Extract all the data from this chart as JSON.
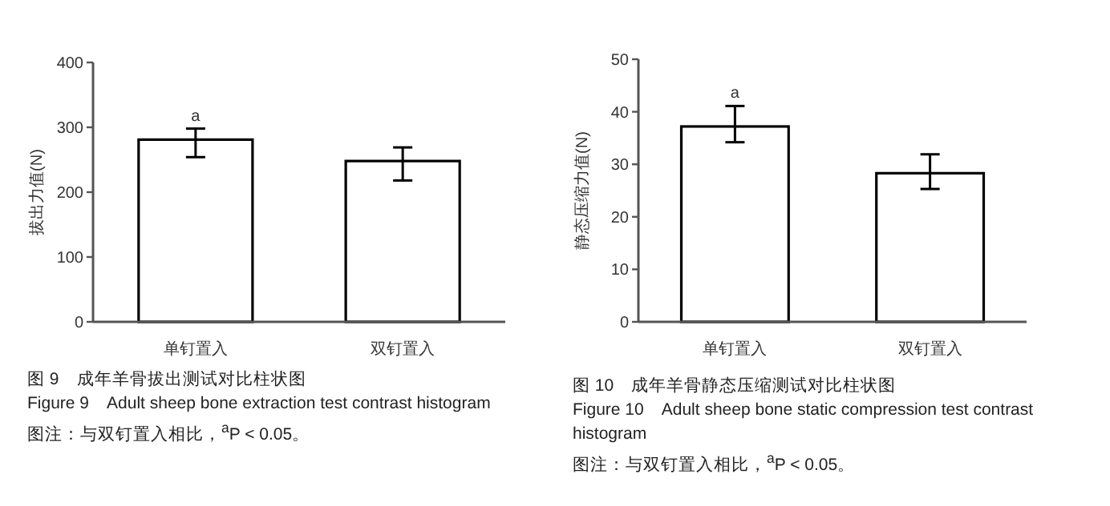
{
  "chart_data": [
    {
      "type": "bar",
      "title": "图 9　成年羊骨拔出测试对比柱状图",
      "subtitle": "Figure 9　Adult sheep bone extraction test contrast histogram",
      "ylabel": "拔出力值(N)",
      "categories": [
        "单钉置入",
        "双钉置入"
      ],
      "values": [
        281,
        248
      ],
      "errors": [
        [
          254,
          298
        ],
        [
          218,
          269
        ]
      ],
      "color": "#ffffff",
      "ylim": [
        0,
        400
      ],
      "yticks": [
        0,
        100,
        200,
        300,
        400
      ],
      "grid": false,
      "annotations": [
        {
          "text": "a",
          "x": "单钉置入",
          "y": 298
        },
        "图注：与双钉置入相比，$^{a}$P < 0.05。"
      ]
    },
    {
      "type": "bar",
      "title": "图 10　成年羊骨静态压缩测试对比柱状图",
      "subtitle": "Figure 10　Adult sheep bone static compression test contrast histogram",
      "ylabel": "静态压缩力值(N)",
      "categories": [
        "单钉置入",
        "双钉置入"
      ],
      "values": [
        37.2,
        28.3
      ],
      "errors": [
        [
          34.2,
          41.1
        ],
        [
          25.3,
          31.9
        ]
      ],
      "color": "#ffffff",
      "ylim": [
        0,
        50
      ],
      "yticks": [
        0,
        10,
        20,
        30,
        40,
        50
      ],
      "grid": false,
      "annotations": [
        {
          "text": "a",
          "x": "单钉置入",
          "y": 41.1
        },
        "图注：与双钉置入相比，$^{a}$P < 0.05。"
      ]
    }
  ]
}
